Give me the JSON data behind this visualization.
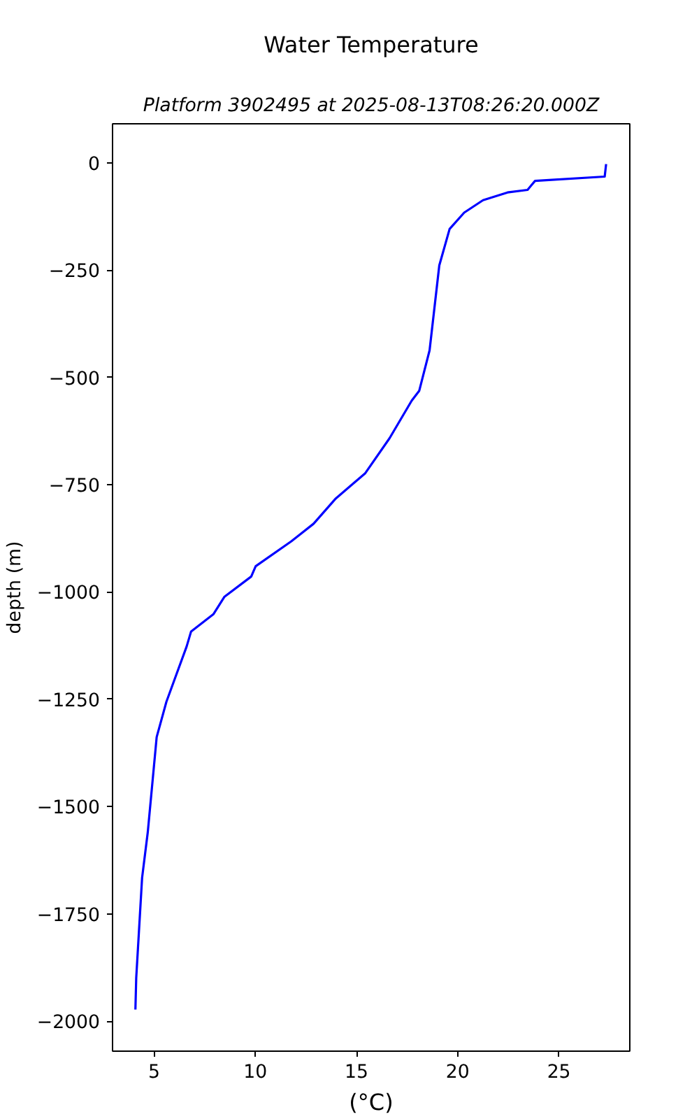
{
  "chart_data": {
    "type": "line",
    "title": "Water Temperature",
    "subtitle": "Platform 3902495 at 2025-08-13T08:26:20.000Z",
    "xlabel": "(°C)",
    "ylabel": "depth (m)",
    "series": [
      {
        "color": "#0000ff",
        "x": [
          27.33,
          27.26,
          23.82,
          23.45,
          22.46,
          21.25,
          20.32,
          19.6,
          19.09,
          18.61,
          18.1,
          17.73,
          16.63,
          15.42,
          13.98,
          12.88,
          11.78,
          10.02,
          9.8,
          8.48,
          7.93,
          6.83,
          6.61,
          5.61,
          5.13,
          4.69,
          4.41,
          4.12,
          4.08
        ],
        "values": [
          -3,
          -32,
          -42,
          -63,
          -69,
          -87,
          -116,
          -154,
          -239,
          -437,
          -531,
          -554,
          -642,
          -724,
          -782,
          -841,
          -882,
          -940,
          -964,
          -1011,
          -1052,
          -1092,
          -1127,
          -1256,
          -1338,
          -1560,
          -1666,
          -1899,
          -1973
        ]
      }
    ],
    "xlim": [
      2.95,
      28.5
    ],
    "ylim": [
      -2070,
      91
    ],
    "xticks": [
      5,
      10,
      15,
      20,
      25
    ],
    "yticks": [
      0,
      {
        "value": -250,
        "label": "−250"
      },
      {
        "value": -500,
        "label": "−500"
      },
      {
        "value": -750,
        "label": "−750"
      },
      {
        "value": -1000,
        "label": "−1000"
      },
      {
        "value": -1250,
        "label": "−1250"
      },
      {
        "value": -1500,
        "label": "−1500"
      },
      {
        "value": -1750,
        "label": "−1750"
      },
      {
        "value": -2000,
        "label": "−2000"
      }
    ],
    "grid": false,
    "line_style": "solid"
  }
}
